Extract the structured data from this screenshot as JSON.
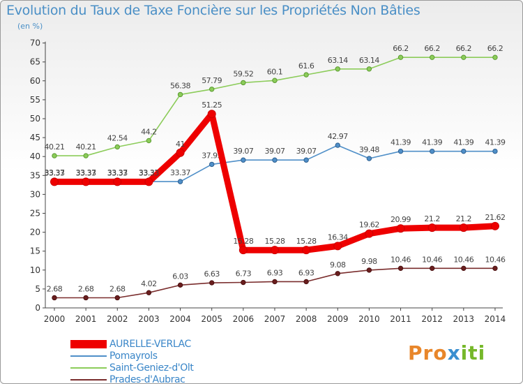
{
  "title": "Evolution du Taux de Taxe Foncière sur les Propriétés Non Bâties",
  "subtitle": "(en %)",
  "brand": {
    "letters": [
      "P",
      "r",
      "o",
      "x",
      "i",
      "t",
      "i"
    ],
    "colors": [
      "#e8862a",
      "#e8862a",
      "#e8862a",
      "#3a8fd0",
      "#76b82a",
      "#76b82a",
      "#76b82a"
    ]
  },
  "chart_data": {
    "type": "line",
    "title": "Evolution du Taux de Taxe Foncière sur les Propriétés Non Bâties",
    "ylabel": "(en %)",
    "xlabel": "",
    "ylim": [
      0,
      70
    ],
    "yticks": [
      0,
      5,
      10,
      15,
      20,
      25,
      30,
      35,
      40,
      45,
      50,
      55,
      60,
      65,
      70
    ],
    "grid": false,
    "legend": "bottom-left",
    "categories": [
      "2000",
      "2001",
      "2002",
      "2003",
      "2004",
      "2005",
      "2006",
      "2007",
      "2008",
      "2009",
      "2010",
      "2011",
      "2012",
      "2013",
      "2014"
    ],
    "series": [
      {
        "name": "AURELLE-VERLAC",
        "color": "#ee0000",
        "values": [
          33.33,
          33.33,
          33.33,
          33.33,
          41,
          51.25,
          15.28,
          15.28,
          15.28,
          16.34,
          19.62,
          20.99,
          21.2,
          21.2,
          21.62
        ],
        "labels": [
          "33.33",
          "33.33",
          "33.33",
          "33.33",
          "41",
          "51.25",
          "15.28",
          "15.28",
          "15.28",
          "16.34",
          "19.62",
          "20.99",
          "21.2",
          "21.2",
          "21.62"
        ]
      },
      {
        "name": "Pomayrols",
        "color": "#4f8fc8",
        "values": [
          33.37,
          33.37,
          33.37,
          33.37,
          33.37,
          37.93,
          39.07,
          39.07,
          39.07,
          42.97,
          39.48,
          41.39,
          41.39,
          41.39,
          41.39
        ],
        "labels": [
          "33.37",
          "33.37",
          "33.37",
          "33.37",
          "33.37",
          "37.93",
          "39.07",
          "39.07",
          "39.07",
          "42.97",
          "39.48",
          "41.39",
          "41.39",
          "41.39",
          "41.39"
        ]
      },
      {
        "name": "Saint-Geniez-d'Olt",
        "color": "#8ccc5a",
        "values": [
          40.21,
          40.21,
          42.54,
          44.2,
          56.38,
          57.79,
          59.52,
          60.1,
          61.6,
          63.14,
          63.14,
          66.2,
          66.2,
          66.2,
          66.2
        ],
        "labels": [
          "40.21",
          "40.21",
          "42.54",
          "44.2",
          "56.38",
          "57.79",
          "59.52",
          "60.1",
          "61.6",
          "63.14",
          "63.14",
          "66.2",
          "66.2",
          "66.2",
          "66.2"
        ]
      },
      {
        "name": "Prades-d'Aubrac",
        "color": "#7a2d2d",
        "values": [
          2.68,
          2.68,
          2.68,
          4.02,
          6.03,
          6.63,
          6.73,
          6.93,
          6.93,
          9.08,
          9.98,
          10.46,
          10.46,
          10.46,
          10.46
        ],
        "labels": [
          "2.68",
          "2.68",
          "2.68",
          "4.02",
          "6.03",
          "6.63",
          "6.73",
          "6.93",
          "6.93",
          "9.08",
          "9.98",
          "10.46",
          "10.46",
          "10.46",
          "10.46"
        ]
      }
    ]
  }
}
